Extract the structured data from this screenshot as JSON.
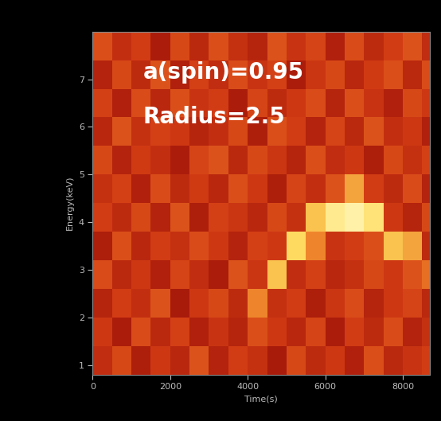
{
  "chart_data": {
    "type": "heatmap",
    "x_label": "Time(s)",
    "y_label": "Energy(keV)",
    "annotations": [
      "a(spin)=0.95",
      "Radius=2.5"
    ],
    "xlim": [
      0,
      8700
    ],
    "ylim": [
      0.8,
      8.0
    ],
    "xticks": [
      0,
      2000,
      4000,
      6000,
      8000
    ],
    "yticks": [
      1,
      2,
      3,
      4,
      5,
      6,
      7
    ],
    "x_bins": [
      0,
      500,
      1000,
      1500,
      2000,
      2500,
      3000,
      3500,
      4000,
      4500,
      5000,
      5500,
      6000,
      6500,
      7000,
      7500,
      8000,
      8500,
      8700
    ],
    "y_bins": [
      0.8,
      1.4,
      2.0,
      2.6,
      3.2,
      3.8,
      4.4,
      5.0,
      5.6,
      6.2,
      6.8,
      7.4,
      8.0
    ],
    "cells": [
      [
        0.45,
        0.55,
        0.38,
        0.5,
        0.42,
        0.58,
        0.4,
        0.52,
        0.47,
        0.36,
        0.55,
        0.44,
        0.5,
        0.39,
        0.57,
        0.43,
        0.48,
        0.52
      ],
      [
        0.5,
        0.37,
        0.56,
        0.43,
        0.53,
        0.39,
        0.48,
        0.41,
        0.57,
        0.5,
        0.42,
        0.54,
        0.37,
        0.52,
        0.44,
        0.56,
        0.4,
        0.47
      ],
      [
        0.41,
        0.52,
        0.46,
        0.58,
        0.36,
        0.5,
        0.55,
        0.44,
        0.7,
        0.47,
        0.52,
        0.38,
        0.49,
        0.56,
        0.41,
        0.5,
        0.54,
        0.43
      ],
      [
        0.56,
        0.43,
        0.5,
        0.39,
        0.54,
        0.45,
        0.37,
        0.58,
        0.49,
        0.8,
        0.45,
        0.53,
        0.42,
        0.47,
        0.55,
        0.5,
        0.58,
        0.65
      ],
      [
        0.38,
        0.57,
        0.42,
        0.52,
        0.47,
        0.56,
        0.5,
        0.4,
        0.53,
        0.5,
        0.85,
        0.7,
        0.48,
        0.52,
        0.57,
        0.8,
        0.75,
        0.44
      ],
      [
        0.52,
        0.44,
        0.55,
        0.4,
        0.58,
        0.38,
        0.53,
        0.49,
        0.42,
        0.55,
        0.47,
        0.8,
        0.95,
        1.0,
        0.9,
        0.5,
        0.41,
        0.55
      ],
      [
        0.47,
        0.53,
        0.39,
        0.56,
        0.44,
        0.51,
        0.42,
        0.57,
        0.5,
        0.38,
        0.54,
        0.46,
        0.58,
        0.75,
        0.52,
        0.44,
        0.56,
        0.4
      ],
      [
        0.55,
        0.4,
        0.51,
        0.46,
        0.37,
        0.54,
        0.58,
        0.43,
        0.55,
        0.49,
        0.41,
        0.57,
        0.45,
        0.5,
        0.38,
        0.55,
        0.47,
        0.53
      ],
      [
        0.42,
        0.58,
        0.47,
        0.53,
        0.5,
        0.41,
        0.46,
        0.55,
        0.38,
        0.57,
        0.52,
        0.4,
        0.54,
        0.43,
        0.58,
        0.46,
        0.5,
        0.39
      ],
      [
        0.53,
        0.39,
        0.56,
        0.42,
        0.57,
        0.48,
        0.52,
        0.37,
        0.54,
        0.44,
        0.5,
        0.56,
        0.41,
        0.57,
        0.48,
        0.39,
        0.55,
        0.5
      ],
      [
        0.4,
        0.55,
        0.44,
        0.58,
        0.39,
        0.53,
        0.45,
        0.56,
        0.48,
        0.53,
        0.37,
        0.49,
        0.55,
        0.42,
        0.51,
        0.57,
        0.43,
        0.56
      ],
      [
        0.57,
        0.46,
        0.52,
        0.37,
        0.55,
        0.43,
        0.57,
        0.47,
        0.41,
        0.58,
        0.48,
        0.54,
        0.39,
        0.56,
        0.44,
        0.52,
        0.58,
        0.45
      ]
    ]
  }
}
